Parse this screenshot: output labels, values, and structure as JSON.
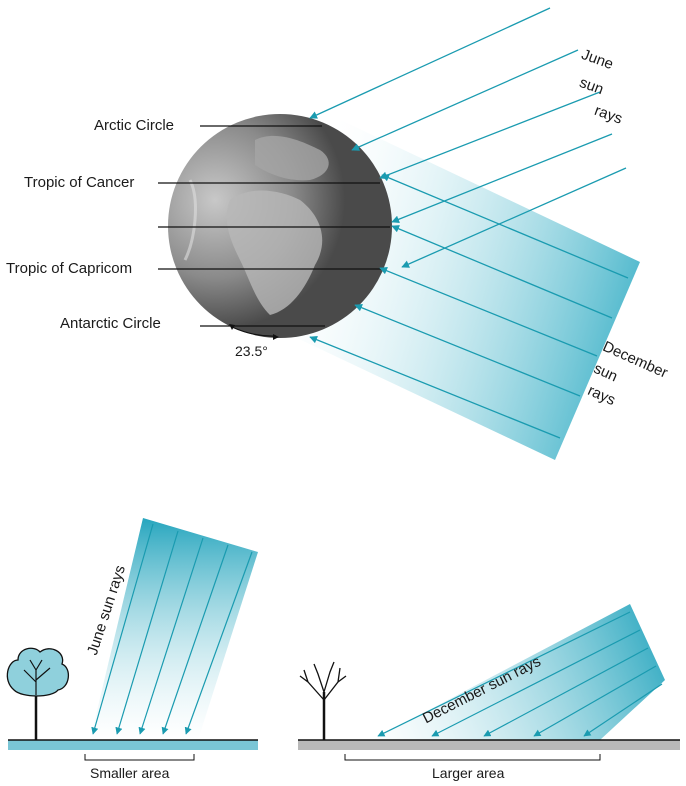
{
  "latitude_labels": {
    "arctic": "Arctic Circle",
    "cancer": "Tropic of Cancer",
    "capricorn": "Tropic of Capricom",
    "antarctic": "Antarctic Circle"
  },
  "tilt_angle": "23.5°",
  "june_rays": [
    "June",
    "sun",
    "rays"
  ],
  "december_rays": [
    "December",
    "sun",
    "rays"
  ],
  "bottom_left": {
    "rays_label": "June sun rays",
    "area_label": "Smaller area"
  },
  "bottom_right": {
    "rays_label": "December sun rays",
    "area_label": "Larger area"
  },
  "colors": {
    "ray": "#1a9bb0",
    "beam": "#3fb2c8",
    "ground_left": "#7ac6d6",
    "ground_right": "#b9b9b9",
    "tree_canopy": "#8fd0dc"
  }
}
